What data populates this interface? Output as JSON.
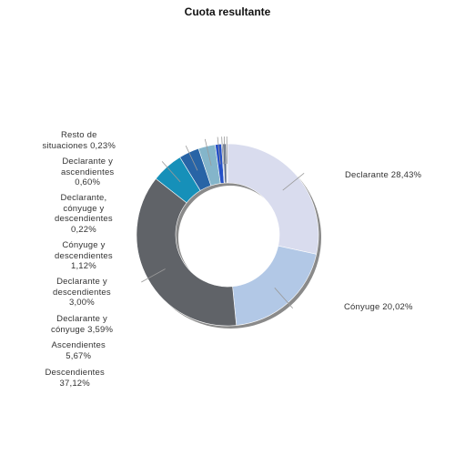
{
  "chart_data": {
    "type": "pie",
    "variant": "donut",
    "title": "Cuota resultante",
    "slices": [
      {
        "name": "Declarante",
        "value": 28.43,
        "label": "Declarante 28,43%",
        "color": "#d9dcee"
      },
      {
        "name": "Cónyuge",
        "value": 20.02,
        "label": "Cónyuge 20,02%",
        "color": "#b2c8e6"
      },
      {
        "name": "Descendientes",
        "value": 37.12,
        "label": "Descendientes\n37,12%",
        "color": "#606368"
      },
      {
        "name": "Ascendientes",
        "value": 5.67,
        "label": "Ascendientes\n5,67%",
        "color": "#1690b9"
      },
      {
        "name": "Declarante y cónyuge",
        "value": 3.59,
        "label": "Declarante y\ncónyuge 3,59%",
        "color": "#2864a6"
      },
      {
        "name": "Declarante y descendientes",
        "value": 3.0,
        "label": "Declarante y\ndescendientes\n3,00%",
        "color": "#84b5ca"
      },
      {
        "name": "Cónyuge y descendientes",
        "value": 1.12,
        "label": "Cónyuge y\ndescendientes\n1,12%",
        "color": "#2450c8"
      },
      {
        "name": "Declarante, cónyuge y descendientes",
        "value": 0.22,
        "label": "Declarante,\ncónyuge y\ndescendientes\n0,22%",
        "color": "#9aa9c2"
      },
      {
        "name": "Declarante y ascendientes",
        "value": 0.6,
        "label": "Declarante y\nascendientes\n0,60%",
        "color": "#5a6a86"
      },
      {
        "name": "Resto de situaciones",
        "value": 0.23,
        "label": "Resto de\nsituaciones 0,23%",
        "color": "#c9cfdb"
      }
    ],
    "start": "12 o'clock",
    "direction": "clockwise",
    "legend": "none"
  }
}
